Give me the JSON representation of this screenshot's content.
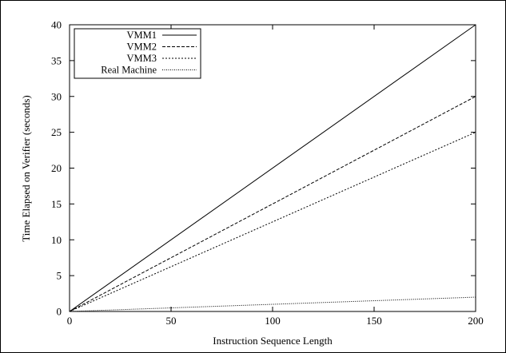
{
  "chart_data": {
    "type": "line",
    "title": "",
    "xlabel": "Instruction Sequence Length",
    "ylabel": "Time Elapsed on Verifier (seconds)",
    "xlim": [
      0,
      200
    ],
    "ylim": [
      0,
      40
    ],
    "xticks": [
      0,
      50,
      100,
      150,
      200
    ],
    "yticks": [
      0,
      5,
      10,
      15,
      20,
      25,
      30,
      35,
      40
    ],
    "grid": false,
    "legend_position": "top-left",
    "series": [
      {
        "name": "VMM1",
        "style": "solid",
        "x": [
          0,
          200
        ],
        "y": [
          0,
          40
        ]
      },
      {
        "name": "VMM2",
        "style": "dashed",
        "x": [
          0,
          200
        ],
        "y": [
          0,
          30
        ]
      },
      {
        "name": "VMM3",
        "style": "dotted",
        "x": [
          0,
          200
        ],
        "y": [
          0,
          25
        ]
      },
      {
        "name": "Real Machine",
        "style": "fine-dotted",
        "x": [
          0,
          200
        ],
        "y": [
          0,
          2
        ]
      }
    ]
  }
}
